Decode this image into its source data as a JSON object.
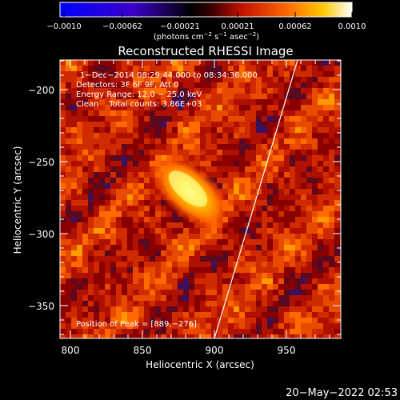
{
  "colorbar": {
    "ticks": [
      "−0.0010",
      "−0.00062",
      "−0.00021",
      "0.00021",
      "0.00062",
      "0.0010"
    ],
    "unit_prefix": "(photons cm",
    "unit_exp1": "−2",
    "unit_mid": " s",
    "unit_exp2": "−1",
    "unit_mid2": " asec",
    "unit_exp3": "−2",
    "unit_suffix": ")",
    "colors": [
      "#1a00ff",
      "#ff2a00",
      "#ffd500",
      "#fffde0"
    ]
  },
  "title": "Reconstructed RHESSI Image",
  "annotations": {
    "time_range": "1−Dec−2014 08:29:44.000 to 08:34:36.000",
    "detectors": "Detectors: 3F 6F 9F, Att 0",
    "energy": "Energy Range: 12.0 − 25.0 keV",
    "clean": "Clean    Total counts: 3.86E+03",
    "peak": "Position of Peak = [889,−276]"
  },
  "axes": {
    "xlabel": "Heliocentric X (arcsec)",
    "ylabel": "Heliocentric Y (arcsec)",
    "xticks": [
      "800",
      "850",
      "900",
      "950"
    ],
    "yticks": [
      "−200",
      "−250",
      "−300",
      "−350"
    ]
  },
  "timestamp": "20−May−2022 02:53"
}
